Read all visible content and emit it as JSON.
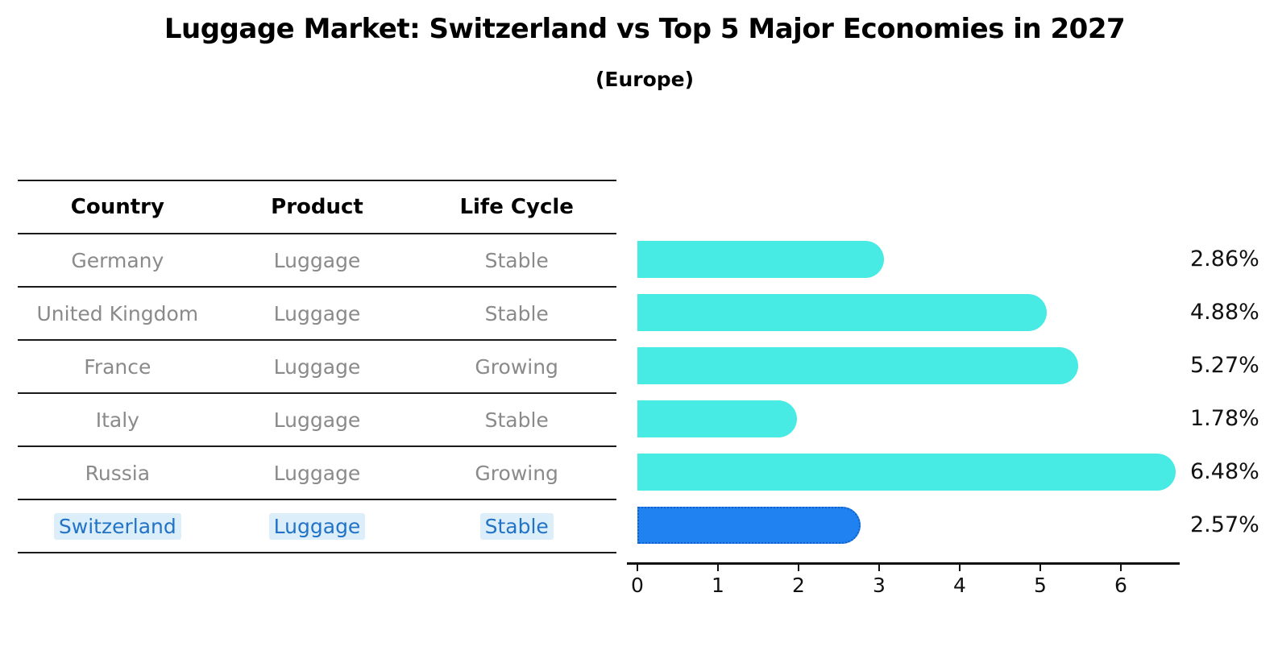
{
  "title": "Luggage Market: Switzerland vs Top 5 Major Economies in 2027",
  "subtitle": "(Europe)",
  "table": {
    "headers": [
      "Country",
      "Product",
      "Life Cycle"
    ],
    "rows": [
      {
        "country": "Germany",
        "product": "Luggage",
        "life_cycle": "Stable",
        "highlighted": false
      },
      {
        "country": "United Kingdom",
        "product": "Luggage",
        "life_cycle": "Stable",
        "highlighted": false
      },
      {
        "country": "France",
        "product": "Luggage",
        "life_cycle": "Growing",
        "highlighted": false
      },
      {
        "country": "Italy",
        "product": "Luggage",
        "life_cycle": "Stable",
        "highlighted": false
      },
      {
        "country": "Russia",
        "product": "Luggage",
        "life_cycle": "Growing",
        "highlighted": false
      },
      {
        "country": "Switzerland",
        "product": "Luggage",
        "life_cycle": "Stable",
        "highlighted": true
      }
    ]
  },
  "chart_data": {
    "type": "bar",
    "orientation": "horizontal",
    "title": "Luggage Market: Switzerland vs Top 5 Major Economies in 2027 (Europe)",
    "categories": [
      "Germany",
      "United Kingdom",
      "France",
      "Italy",
      "Russia",
      "Switzerland"
    ],
    "values": [
      2.86,
      4.88,
      5.27,
      1.78,
      6.48,
      2.57
    ],
    "value_labels": [
      "2.86%",
      "4.88%",
      "5.27%",
      "1.78%",
      "6.48%",
      "2.57%"
    ],
    "x_ticks": [
      "0",
      "1",
      "2",
      "3",
      "4",
      "5",
      "6"
    ],
    "xlim": [
      0,
      6.8
    ],
    "xlabel": "",
    "ylabel": "",
    "grid": false,
    "legend": null,
    "highlight_index": 5,
    "bar_color": "#48eae4",
    "highlight_bar_color": "#1f82f0",
    "highlight_text_color": "#2273c6",
    "label_color": "#111111"
  }
}
